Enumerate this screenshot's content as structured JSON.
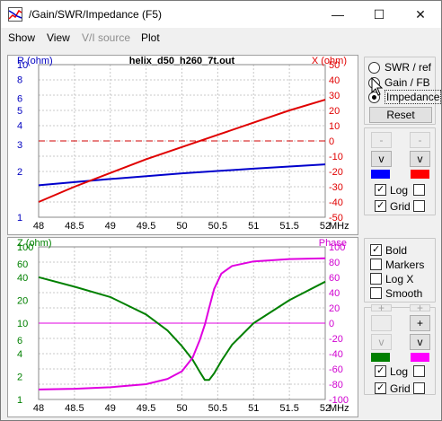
{
  "window": {
    "title": "/Gain/SWR/Impedance (F5)",
    "minimize_glyph": "—",
    "maximize_glyph": "☐",
    "close_glyph": "✕"
  },
  "menu": {
    "items": [
      "Show",
      "View",
      "V/I source",
      "Plot"
    ],
    "disabled": [
      false,
      false,
      true,
      false
    ]
  },
  "top_panel": {
    "plot_type_options": [
      "SWR / ref",
      "Gain / FB",
      "Impedance"
    ],
    "selected_plot_type": "Impedance",
    "reset_label": "Reset",
    "scale_buttons": {
      "r_up": "-",
      "r_down": "v",
      "x_up": "-",
      "x_down": "v"
    },
    "swatch_colors": [
      "#0000ff",
      "#ff0000"
    ],
    "log_label": "Log",
    "grid_label": "Grid",
    "log_checked": [
      true,
      false
    ],
    "grid_checked": [
      true,
      false
    ]
  },
  "bottom_panel": {
    "options": [
      {
        "label": "Bold",
        "checked": true
      },
      {
        "label": "Markers",
        "checked": false
      },
      {
        "label": "Log X",
        "checked": false
      },
      {
        "label": "Smooth",
        "checked": false
      }
    ],
    "scale_buttons": {
      "z_up": "+",
      "z_down": "v",
      "phase_up": "+",
      "phase_down": "v"
    },
    "swatch_colors": [
      "#008000",
      "#ff00ff"
    ],
    "log_label": "Log",
    "grid_label": "Grid",
    "log_checked": [
      true,
      false
    ],
    "grid_checked": [
      true,
      false
    ]
  },
  "chart_data": [
    {
      "type": "line",
      "title": "helix_d50_h260_7t.out",
      "ylabel_left": "R (ohm)",
      "ylabel_right": "X (ohm)",
      "xunit": "MHz",
      "x_ticks": [
        "48",
        "48.5",
        "49",
        "49.5",
        "50",
        "50.5",
        "51",
        "51.5",
        "52"
      ],
      "xlim": [
        48,
        52
      ],
      "left_ticks": [
        "10",
        "8",
        "6",
        "5",
        "4",
        "3",
        "2",
        "1"
      ],
      "left_scale": "log",
      "left_ylim": [
        1,
        10
      ],
      "right_ticks": [
        "50",
        "40",
        "30",
        "20",
        "10",
        "0",
        "-10",
        "-20",
        "-30",
        "-40",
        "-50"
      ],
      "right_ylim": [
        -50,
        50
      ],
      "grid": true,
      "colors": {
        "left_axis": "#0000c0",
        "right_axis": "#e00000",
        "R": "#0000cc",
        "X": "#e00000"
      },
      "series": [
        {
          "axis": "left",
          "x": [
            48,
            49,
            50,
            51,
            52
          ],
          "y": [
            1.62,
            1.78,
            1.94,
            2.08,
            2.22
          ]
        },
        {
          "axis": "right",
          "x": [
            48,
            48.5,
            49,
            49.5,
            50,
            50.5,
            51,
            51.5,
            52
          ],
          "y": [
            -40,
            -30,
            -21,
            -12,
            -4,
            4,
            12,
            20,
            27
          ]
        }
      ],
      "reference_line": {
        "axis": "right",
        "value": 0
      }
    },
    {
      "type": "line",
      "title": "",
      "ylabel_left": "Z (ohm)",
      "ylabel_right": "Phase",
      "xunit": "MHz",
      "x_ticks": [
        "48",
        "48.5",
        "49",
        "49.5",
        "50",
        "50.5",
        "51",
        "51.5",
        "52"
      ],
      "xlim": [
        48,
        52
      ],
      "left_ticks": [
        "100",
        "60",
        "40",
        "20",
        "10",
        "6",
        "4",
        "2",
        "1"
      ],
      "left_scale": "log",
      "left_ylim": [
        1,
        100
      ],
      "right_ticks": [
        "100",
        "80",
        "60",
        "40",
        "20",
        "0",
        "-20",
        "-40",
        "-60",
        "-80",
        "-100"
      ],
      "right_ylim": [
        -100,
        100
      ],
      "grid": true,
      "colors": {
        "left_axis": "#008000",
        "right_axis": "#d000d0",
        "Z": "#008000",
        "Phase": "#e000e0"
      },
      "series": [
        {
          "axis": "left",
          "x": [
            48,
            48.5,
            49,
            49.5,
            49.8,
            50,
            50.15,
            50.25,
            50.32,
            50.38,
            50.45,
            50.55,
            50.7,
            51,
            51.5,
            52
          ],
          "y": [
            40,
            30,
            22,
            13,
            8,
            5,
            3.3,
            2.3,
            1.8,
            1.8,
            2.2,
            3.2,
            5.2,
            10,
            20,
            35
          ]
        },
        {
          "axis": "right",
          "x": [
            48,
            48.5,
            49,
            49.5,
            49.8,
            50,
            50.15,
            50.25,
            50.32,
            50.38,
            50.45,
            50.55,
            50.7,
            51,
            51.5,
            52
          ],
          "y": [
            -87,
            -86,
            -84,
            -80,
            -73,
            -63,
            -45,
            -22,
            -2,
            20,
            45,
            65,
            75,
            81,
            84,
            85
          ]
        }
      ],
      "reference_line": {
        "axis": "right",
        "value": 0
      }
    }
  ]
}
